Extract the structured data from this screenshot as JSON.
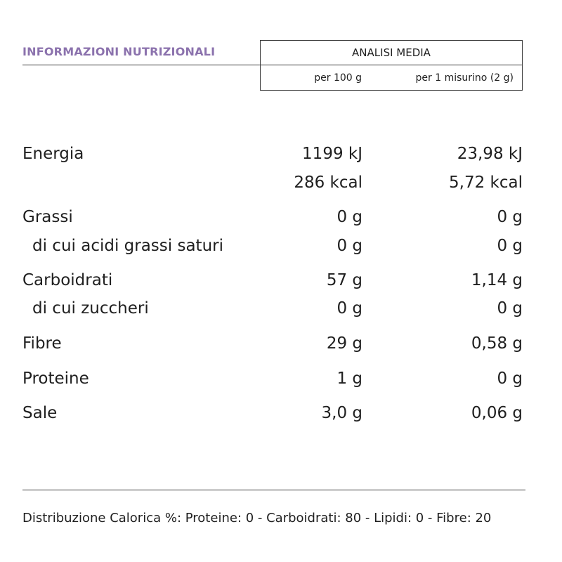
{
  "heading": "INFORMAZIONI NUTRIZIONALI",
  "header": {
    "title": "ANALISI MEDIA",
    "col1": "per 100 g",
    "col2": "per 1 misurino (2 g)"
  },
  "rows": [
    {
      "label": "Energia",
      "per100": "1199 kJ",
      "perServing": "23,98 kJ"
    },
    {
      "label": "",
      "per100": "286 kcal",
      "perServing": "5,72 kcal"
    },
    {
      "label": "Grassi",
      "per100": "0 g",
      "perServing": "0 g"
    },
    {
      "label": "di cui acidi grassi saturi",
      "per100": "0 g",
      "perServing": "0 g"
    },
    {
      "label": "Carboidrati",
      "per100": "57 g",
      "perServing": "1,14 g"
    },
    {
      "label": "di cui zuccheri",
      "per100": "0 g",
      "perServing": "0 g"
    },
    {
      "label": "Fibre",
      "per100": "29 g",
      "perServing": "0,58 g"
    },
    {
      "label": "Proteine",
      "per100": "1 g",
      "perServing": "0 g"
    },
    {
      "label": "Sale",
      "per100": "3,0 g",
      "perServing": "0,06 g"
    }
  ],
  "footer": "Distribuzione Calorica %:  Proteine: 0 - Carboidrati: 80 - Lipidi: 0 - Fibre: 20",
  "colors": {
    "heading": "#8b72ad",
    "text": "#1f1f1f",
    "rule": "#3a3a3a"
  }
}
